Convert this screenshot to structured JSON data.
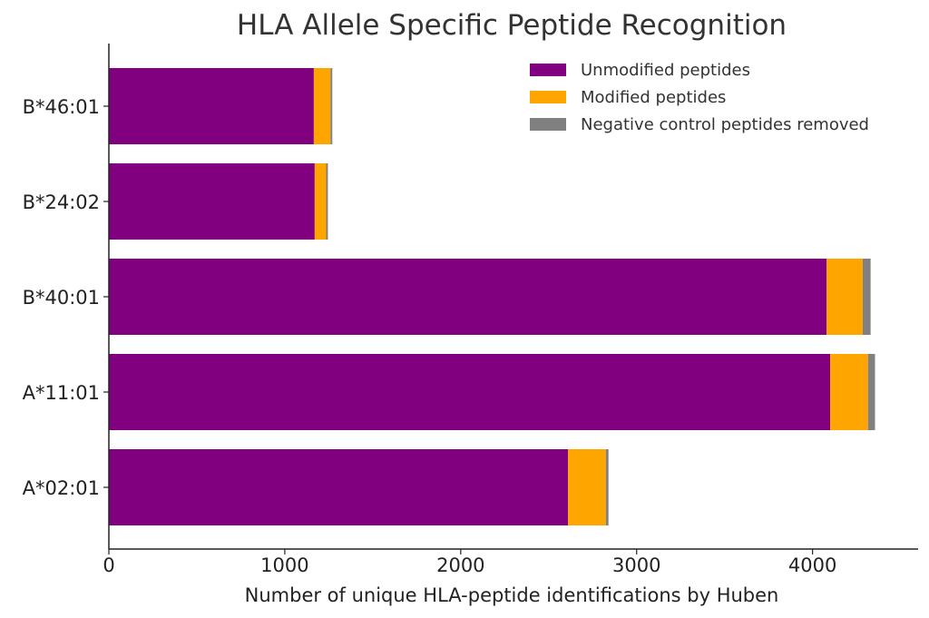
{
  "chart_data": {
    "type": "bar",
    "orientation": "horizontal",
    "stacked": true,
    "title": "HLA Allele Specific Peptide Recognition",
    "xlabel": "Number of unique HLA-peptide identifications by Huben",
    "ylabel": "",
    "xlim": [
      0,
      4600
    ],
    "xticks": [
      0,
      1000,
      2000,
      3000,
      4000
    ],
    "categories": [
      "B*46:01",
      "B*24:02",
      "B*40:01",
      "A*11:01",
      "A*02:01"
    ],
    "series": [
      {
        "name": "Unmodified peptides",
        "color": "#800080",
        "values": [
          1165,
          1170,
          4080,
          4100,
          2610
        ]
      },
      {
        "name": "Modified peptides",
        "color": "#FFA500",
        "values": [
          95,
          65,
          205,
          215,
          215
        ]
      },
      {
        "name": "Negative control peptides removed",
        "color": "#808080",
        "values": [
          10,
          10,
          45,
          40,
          15
        ]
      }
    ],
    "legend_position": "top-right",
    "grid": false
  }
}
